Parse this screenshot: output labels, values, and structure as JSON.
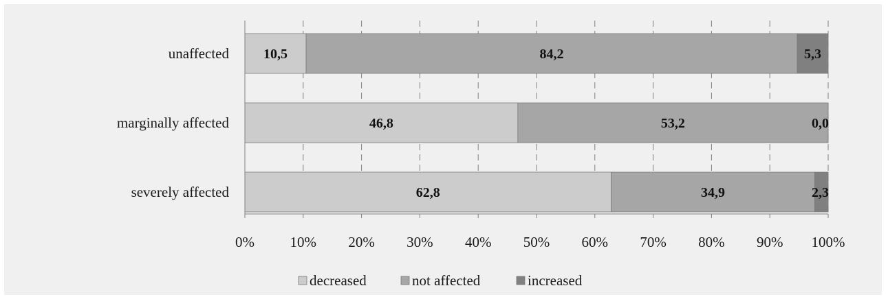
{
  "chart_data": {
    "type": "bar",
    "orientation": "horizontal",
    "stacked": "percent",
    "categories": [
      "unaffected",
      "marginally affected",
      "severely affected"
    ],
    "series": [
      {
        "name": "decreased",
        "values": [
          10.5,
          46.8,
          62.8
        ],
        "labels": [
          "10,5",
          "46,8",
          "62,8"
        ],
        "color": "#cccccc"
      },
      {
        "name": "not affected",
        "values": [
          84.2,
          53.2,
          34.9
        ],
        "labels": [
          "84,2",
          "53,2",
          "34,9"
        ],
        "color": "#a6a6a6"
      },
      {
        "name": "increased",
        "values": [
          5.3,
          0.0,
          2.3
        ],
        "labels": [
          "5,3",
          "0,0",
          "2,3"
        ],
        "color": "#808080"
      }
    ],
    "xlim": [
      0,
      100
    ],
    "xticks": [
      "0%",
      "10%",
      "20%",
      "30%",
      "40%",
      "50%",
      "60%",
      "70%",
      "80%",
      "90%",
      "100%"
    ],
    "grid": "vertical dashed",
    "legend_position": "bottom"
  }
}
